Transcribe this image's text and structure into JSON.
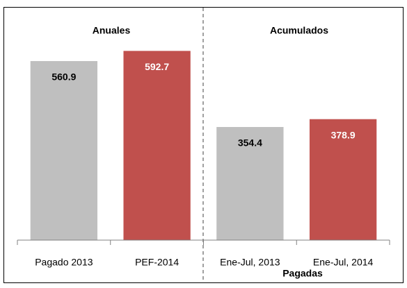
{
  "chart_data": {
    "type": "bar",
    "group_labels": [
      "Anuales",
      "Acumulados"
    ],
    "annotation": "Pagadas",
    "categories": [
      "Pagado 2013",
      "PEF-2014",
      "Ene-Jul, 2013",
      "Ene-Jul, 2014"
    ],
    "values": [
      560.9,
      592.7,
      354.4,
      378.9
    ],
    "colors": [
      "#bfbfbf",
      "#c0504d",
      "#bfbfbf",
      "#c0504d"
    ],
    "label_colors": [
      "#000000",
      "#ffffff",
      "#000000",
      "#ffffff"
    ],
    "ylim": [
      0,
      650
    ]
  }
}
